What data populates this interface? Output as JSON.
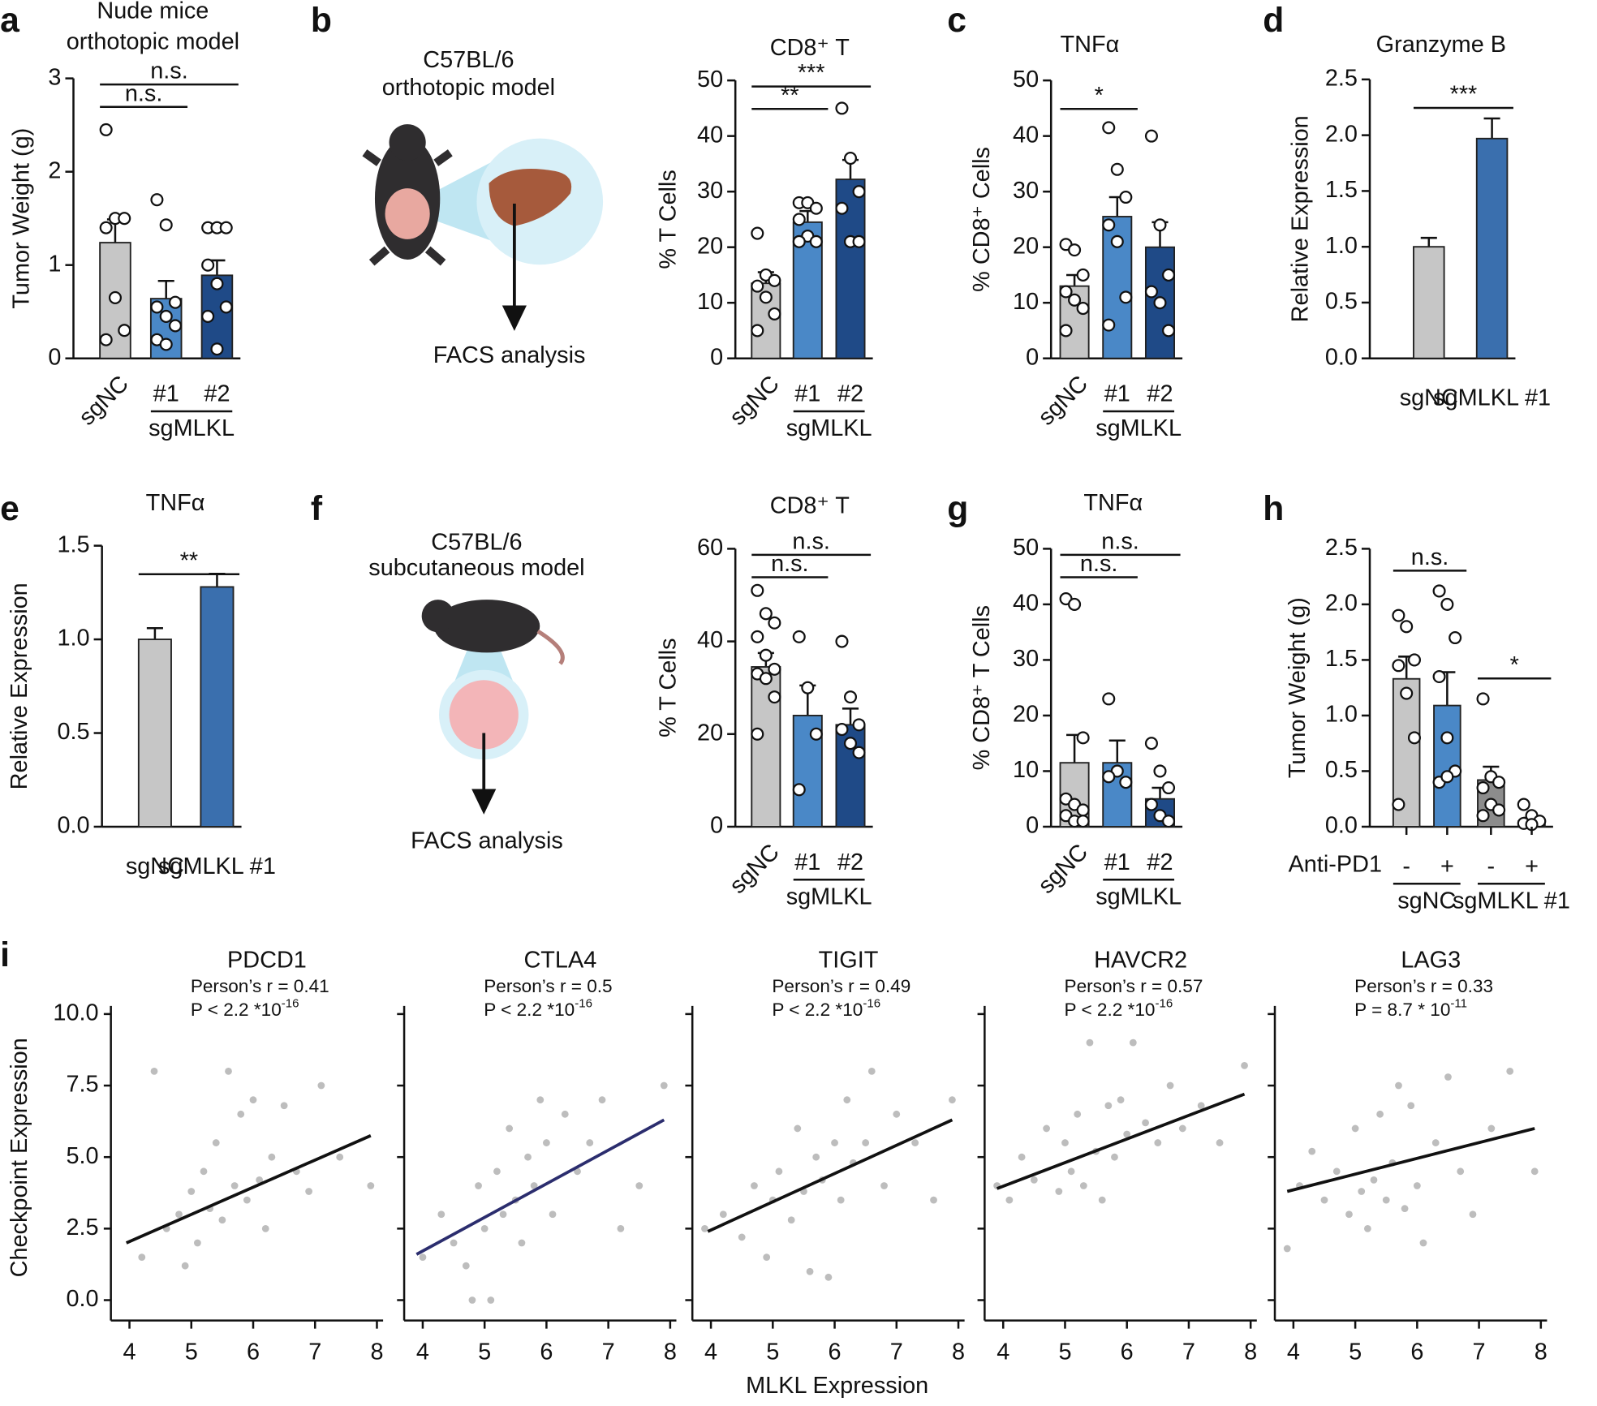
{
  "chart_data": [
    {
      "type": "bar",
      "panel": "a",
      "title": [
        "Nude mice",
        "orthotopic model"
      ],
      "ylabel": "Tumor Weight (g)",
      "categories": [
        "sgNC",
        "#1",
        "#2"
      ],
      "values": [
        1.24,
        0.64,
        0.89
      ],
      "errors": [
        0.25,
        0.19,
        0.16
      ],
      "points": [
        [
          2.45,
          1.5,
          1.5,
          1.4,
          0.65,
          0.3,
          0.2
        ],
        [
          1.7,
          1.43,
          0.6,
          0.55,
          0.45,
          0.35,
          0.2,
          0.15
        ],
        [
          1.4,
          1.4,
          1.4,
          1.0,
          0.8,
          0.55,
          0.45,
          0.1
        ]
      ],
      "colors": [
        "#c6c6c6",
        "#4a88c7",
        "#1f4a87"
      ],
      "ylim": [
        0,
        3
      ],
      "yticks": [
        0,
        1,
        2,
        3
      ],
      "groups": [
        {
          "label": "sgMLKL",
          "from": 1,
          "to": 2
        }
      ],
      "annotations": [
        {
          "text": "n.s.",
          "from": 0,
          "to": 1
        },
        {
          "text": "n.s.",
          "from": 0,
          "to": 2
        }
      ]
    },
    {
      "type": "bar",
      "panel": "b",
      "title": "CD8⁺ T",
      "ylabel": "% T Cells",
      "categories": [
        "sgNC",
        "#1",
        "#2"
      ],
      "values": [
        13.5,
        24.5,
        32.2
      ],
      "errors": [
        2,
        2,
        3.5
      ],
      "points": [
        [
          22.5,
          15,
          14,
          13,
          11,
          8,
          5
        ],
        [
          28,
          28,
          27,
          25,
          22,
          21,
          21
        ],
        [
          45,
          36,
          30,
          27,
          21,
          21
        ]
      ],
      "colors": [
        "#c6c6c6",
        "#4a88c7",
        "#1f4a87"
      ],
      "ylim": [
        0,
        50
      ],
      "yticks": [
        0,
        10,
        20,
        30,
        40,
        50
      ],
      "groups": [
        {
          "label": "sgMLKL",
          "from": 1,
          "to": 2
        }
      ],
      "annotations": [
        {
          "text": "**",
          "from": 0,
          "to": 1
        },
        {
          "text": "***",
          "from": 0,
          "to": 2
        }
      ]
    },
    {
      "type": "bar",
      "panel": "c",
      "title": "TNFα",
      "ylabel": "% CD8⁺ Cells",
      "categories": [
        "sgNC",
        "#1",
        "#2"
      ],
      "values": [
        13,
        25.5,
        20
      ],
      "errors": [
        2,
        3.5,
        4.5
      ],
      "points": [
        [
          20.5,
          19.5,
          15,
          12,
          10.5,
          9,
          5
        ],
        [
          41.5,
          34,
          29,
          24,
          21,
          11,
          6
        ],
        [
          40,
          24,
          15,
          12,
          10,
          5
        ]
      ],
      "colors": [
        "#c6c6c6",
        "#4a88c7",
        "#1f4a87"
      ],
      "ylim": [
        0,
        50
      ],
      "yticks": [
        0,
        10,
        20,
        30,
        40,
        50
      ],
      "groups": [
        {
          "label": "sgMLKL",
          "from": 1,
          "to": 2
        }
      ],
      "annotations": [
        {
          "text": "*",
          "from": 0,
          "to": 1
        }
      ]
    },
    {
      "type": "bar",
      "panel": "d",
      "title": "Granzyme B",
      "ylabel": "Relative Expression",
      "categories": [
        "sgNC",
        "sgMLKL #1"
      ],
      "values": [
        1.0,
        1.97
      ],
      "errors": [
        0.08,
        0.18
      ],
      "colors": [
        "#c6c6c6",
        "#3a6fae"
      ],
      "ylim": [
        0,
        2.5
      ],
      "yticks": [
        {
          "value": 0,
          "label": "0.0"
        },
        0.5,
        {
          "value": 1,
          "label": "1.0"
        },
        1.5,
        {
          "value": 2,
          "label": "2.0"
        },
        2.5
      ],
      "annotations": [
        {
          "text": "***",
          "from": 0,
          "to": 1
        }
      ]
    },
    {
      "type": "bar",
      "panel": "e",
      "title": "TNFα",
      "ylabel": "Relative Expression",
      "categories": [
        "sgNC",
        "sgMLKL #1"
      ],
      "values": [
        1.0,
        1.28
      ],
      "errors": [
        0.06,
        0.07
      ],
      "colors": [
        "#c6c6c6",
        "#3a6fae"
      ],
      "ylim": [
        0,
        1.5
      ],
      "yticks": [
        {
          "value": 0,
          "label": "0.0"
        },
        0.5,
        {
          "value": 1,
          "label": "1.0"
        },
        1.5
      ],
      "annotations": [
        {
          "text": "**",
          "from": 0,
          "to": 1
        }
      ]
    },
    {
      "type": "bar",
      "panel": "f",
      "title": "CD8⁺ T",
      "ylabel": "% T Cells",
      "categories": [
        "sgNC",
        "#1",
        "#2"
      ],
      "values": [
        34.5,
        24,
        22
      ],
      "errors": [
        3,
        6.5,
        3.5
      ],
      "points": [
        [
          51,
          46,
          44,
          41,
          37,
          34,
          33,
          32,
          28,
          20
        ],
        [
          41,
          30,
          20,
          8
        ],
        [
          40,
          28,
          22,
          21,
          18,
          16
        ]
      ],
      "colors": [
        "#c6c6c6",
        "#4a88c7",
        "#1f4a87"
      ],
      "ylim": [
        0,
        60
      ],
      "yticks": [
        0,
        20,
        40,
        60
      ],
      "groups": [
        {
          "label": "sgMLKL",
          "from": 1,
          "to": 2
        }
      ],
      "annotations": [
        {
          "text": "n.s.",
          "from": 0,
          "to": 1
        },
        {
          "text": "n.s.",
          "from": 0,
          "to": 2
        }
      ]
    },
    {
      "type": "bar",
      "panel": "g",
      "title": "TNFα",
      "ylabel": "% CD8⁺ T Cells",
      "categories": [
        "sgNC",
        "#1",
        "#2"
      ],
      "values": [
        11.5,
        11.5,
        5
      ],
      "errors": [
        5,
        4,
        2
      ],
      "points": [
        [
          41,
          40,
          16,
          5,
          4,
          3,
          2,
          1,
          1
        ],
        [
          23,
          10,
          8,
          9
        ],
        [
          15,
          10,
          7,
          4,
          2,
          1
        ]
      ],
      "colors": [
        "#c6c6c6",
        "#4a88c7",
        "#1f4a87"
      ],
      "ylim": [
        0,
        50
      ],
      "yticks": [
        0,
        10,
        20,
        30,
        40,
        50
      ],
      "groups": [
        {
          "label": "sgMLKL",
          "from": 1,
          "to": 2
        }
      ],
      "annotations": [
        {
          "text": "n.s.",
          "from": 0,
          "to": 1
        },
        {
          "text": "n.s.",
          "from": 0,
          "to": 2
        }
      ]
    },
    {
      "type": "bar",
      "panel": "h",
      "ylabel": "Tumor Weight (g)",
      "row_label": "Anti-PD1",
      "categories": [
        "-",
        "+",
        "-",
        "+"
      ],
      "values": [
        1.33,
        1.09,
        0.42,
        0.05
      ],
      "errors": [
        0.2,
        0.3,
        0.12,
        0.03
      ],
      "points": [
        [
          1.9,
          1.8,
          1.5,
          1.45,
          1.2,
          0.8,
          0.2
        ],
        [
          2.12,
          2.0,
          1.7,
          1.35,
          0.8,
          0.5,
          0.4,
          0.45
        ],
        [
          1.15,
          0.45,
          0.4,
          0.35,
          0.2,
          0.15,
          0.1
        ],
        [
          0.2,
          0.1,
          0.05,
          0.03,
          0.02
        ]
      ],
      "colors": [
        "#c6c6c6",
        "#4a88c7",
        "#8c8c8c",
        "#4a88c7"
      ],
      "ylim": [
        0,
        2.5
      ],
      "yticks": [
        {
          "value": 0,
          "label": "0.0"
        },
        0.5,
        {
          "value": 1,
          "label": "1.0"
        },
        1.5,
        {
          "value": 2,
          "label": "2.0"
        },
        2.5
      ],
      "groups": [
        {
          "label": "sgNC",
          "from": 0,
          "to": 1
        },
        {
          "label": "sgMLKL #1",
          "from": 2,
          "to": 3
        }
      ],
      "annotations": [
        {
          "text": "n.s.",
          "from": 0,
          "to": 1
        },
        {
          "text": "*",
          "from": 2,
          "to": 3
        }
      ]
    },
    {
      "type": "scatter",
      "title": "PDCD1",
      "stat": "Person’s r = 0.41",
      "p_text": "P < 2.2 *10",
      "p_exp": "-16",
      "color": "#bdbdbd",
      "x": [
        4.2,
        4.4,
        4.6,
        4.8,
        4.9,
        5.0,
        5.1,
        5.2,
        5.3,
        5.4,
        5.5,
        5.6,
        5.7,
        5.8,
        5.9,
        6.0,
        6.1,
        6.2,
        6.3,
        6.5,
        6.7,
        6.9,
        7.1,
        7.4,
        7.9
      ],
      "y": [
        1.5,
        8.0,
        2.5,
        3.0,
        1.2,
        3.8,
        2.0,
        4.5,
        3.2,
        5.5,
        2.8,
        8.0,
        4.0,
        6.5,
        3.5,
        7.0,
        4.2,
        2.5,
        5.0,
        6.8,
        4.5,
        3.8,
        7.5,
        5.0,
        4.0
      ],
      "fit": {
        "x": [
          3.95,
          7.9
        ],
        "y": [
          2.0,
          5.75
        ],
        "color": "#111111"
      }
    },
    {
      "type": "scatter",
      "title": "CTLA4",
      "stat": "Person’s r = 0.5",
      "p_text": "P < 2.2 *10",
      "p_exp": "-16",
      "color": "#bdbdbd",
      "x": [
        4.0,
        4.3,
        4.5,
        4.7,
        4.8,
        4.9,
        5.0,
        5.1,
        5.2,
        5.3,
        5.4,
        5.5,
        5.6,
        5.7,
        5.8,
        5.9,
        6.0,
        6.1,
        6.3,
        6.5,
        6.7,
        6.9,
        7.2,
        7.5,
        7.9
      ],
      "y": [
        1.5,
        3.0,
        2.0,
        1.2,
        0.0,
        4.0,
        2.5,
        0.0,
        4.5,
        3.0,
        6.0,
        3.5,
        2.0,
        5.0,
        4.0,
        7.0,
        5.5,
        3.0,
        6.5,
        4.5,
        5.5,
        7.0,
        2.5,
        4.0,
        7.5
      ],
      "fit": {
        "x": [
          3.9,
          7.9
        ],
        "y": [
          1.6,
          6.3
        ],
        "color": "#2b2d6e"
      }
    },
    {
      "type": "scatter",
      "title": "TIGIT",
      "stat": "Person’s r = 0.49",
      "p_text": "P < 2.2 *10",
      "p_exp": "-16",
      "color": "#bdbdbd",
      "x": [
        3.9,
        4.2,
        4.5,
        4.7,
        4.9,
        5.0,
        5.1,
        5.3,
        5.4,
        5.5,
        5.6,
        5.7,
        5.8,
        5.9,
        6.0,
        6.1,
        6.2,
        6.3,
        6.5,
        6.6,
        6.8,
        7.0,
        7.3,
        7.6,
        7.9
      ],
      "y": [
        2.5,
        3.0,
        2.2,
        4.0,
        1.5,
        3.5,
        4.5,
        2.8,
        6.0,
        3.8,
        1.0,
        5.0,
        4.2,
        0.8,
        5.5,
        3.5,
        7.0,
        4.8,
        5.5,
        8.0,
        4.0,
        6.5,
        5.5,
        3.5,
        7.0
      ],
      "fit": {
        "x": [
          3.95,
          7.9
        ],
        "y": [
          2.4,
          6.3
        ],
        "color": "#111111"
      }
    },
    {
      "type": "scatter",
      "title": "HAVCR2",
      "stat": "Person’s r = 0.57",
      "p_text": "P < 2.2 *10",
      "p_exp": "-16",
      "color": "#bdbdbd",
      "x": [
        3.9,
        4.1,
        4.3,
        4.5,
        4.7,
        4.9,
        5.0,
        5.1,
        5.2,
        5.3,
        5.4,
        5.5,
        5.6,
        5.7,
        5.8,
        5.9,
        6.0,
        6.1,
        6.3,
        6.5,
        6.7,
        6.9,
        7.2,
        7.5,
        7.9
      ],
      "y": [
        4.0,
        3.5,
        5.0,
        4.2,
        6.0,
        3.8,
        5.5,
        4.5,
        6.5,
        4.0,
        9.0,
        5.2,
        3.5,
        6.8,
        5.0,
        7.0,
        5.8,
        9.0,
        6.2,
        5.5,
        7.5,
        6.0,
        6.8,
        5.5,
        8.2
      ],
      "fit": {
        "x": [
          3.9,
          7.9
        ],
        "y": [
          3.9,
          7.2
        ],
        "color": "#111111"
      }
    },
    {
      "type": "scatter",
      "title": "LAG3",
      "stat": "Person’s r = 0.33",
      "p_text": "P = 8.7 * 10",
      "p_exp": "-11",
      "color": "#bdbdbd",
      "x": [
        3.9,
        4.1,
        4.3,
        4.5,
        4.7,
        4.9,
        5.0,
        5.1,
        5.2,
        5.3,
        5.4,
        5.5,
        5.6,
        5.7,
        5.8,
        5.9,
        6.0,
        6.1,
        6.3,
        6.5,
        6.7,
        6.9,
        7.2,
        7.5,
        7.9
      ],
      "y": [
        1.8,
        4.0,
        5.2,
        3.5,
        4.5,
        3.0,
        6.0,
        3.8,
        2.5,
        4.2,
        6.5,
        3.5,
        4.8,
        7.5,
        3.2,
        6.8,
        4.0,
        2.0,
        5.5,
        7.8,
        4.5,
        3.0,
        6.0,
        8.0,
        4.5
      ],
      "fit": {
        "x": [
          3.9,
          7.9
        ],
        "y": [
          3.8,
          6.0
        ],
        "color": "#111111"
      }
    }
  ],
  "panel_i": {
    "panel": "i",
    "ylabel": "Checkpoint Expression",
    "xlabel": "MLKL Expression",
    "xlim": [
      3.7,
      8.1
    ],
    "xticks": [
      4,
      5,
      6,
      7,
      8
    ],
    "ylim": [
      0,
      10
    ],
    "yticks": [
      {
        "value": 0,
        "label": "0.0"
      },
      2.5,
      {
        "value": 5,
        "label": "5.0"
      },
      7.5,
      {
        "value": 10,
        "label": "10.0"
      }
    ]
  },
  "illustrations": [
    {
      "title": [
        "C57BL/6",
        "orthotopic model"
      ],
      "caption": "FACS analysis"
    },
    {
      "title": [
        "C57BL/6",
        "subcutaneous model"
      ],
      "caption": "FACS analysis"
    }
  ]
}
